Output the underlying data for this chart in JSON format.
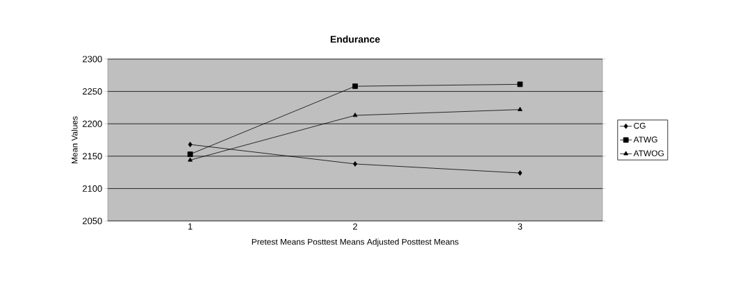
{
  "chart_data": {
    "type": "line",
    "title": "Endurance",
    "xlabel": "Pretest Means   Posttest Means  Adjusted Posttest Means",
    "ylabel": "Mean Values",
    "categories": [
      "1",
      "2",
      "3"
    ],
    "series": [
      {
        "name": "CG",
        "color": "#000000",
        "marker": "diamond",
        "values": [
          2168,
          2138,
          2124
        ]
      },
      {
        "name": "ATWG",
        "color": "#000000",
        "marker": "square",
        "values": [
          2153,
          2258,
          2261
        ]
      },
      {
        "name": "ATWOG",
        "color": "#000000",
        "marker": "triangle",
        "values": [
          2144,
          2213,
          2222
        ]
      }
    ],
    "ylim": [
      2050,
      2300
    ],
    "yticks": [
      2050,
      2100,
      2150,
      2200,
      2250,
      2300
    ],
    "grid": "y",
    "legend": "right"
  }
}
